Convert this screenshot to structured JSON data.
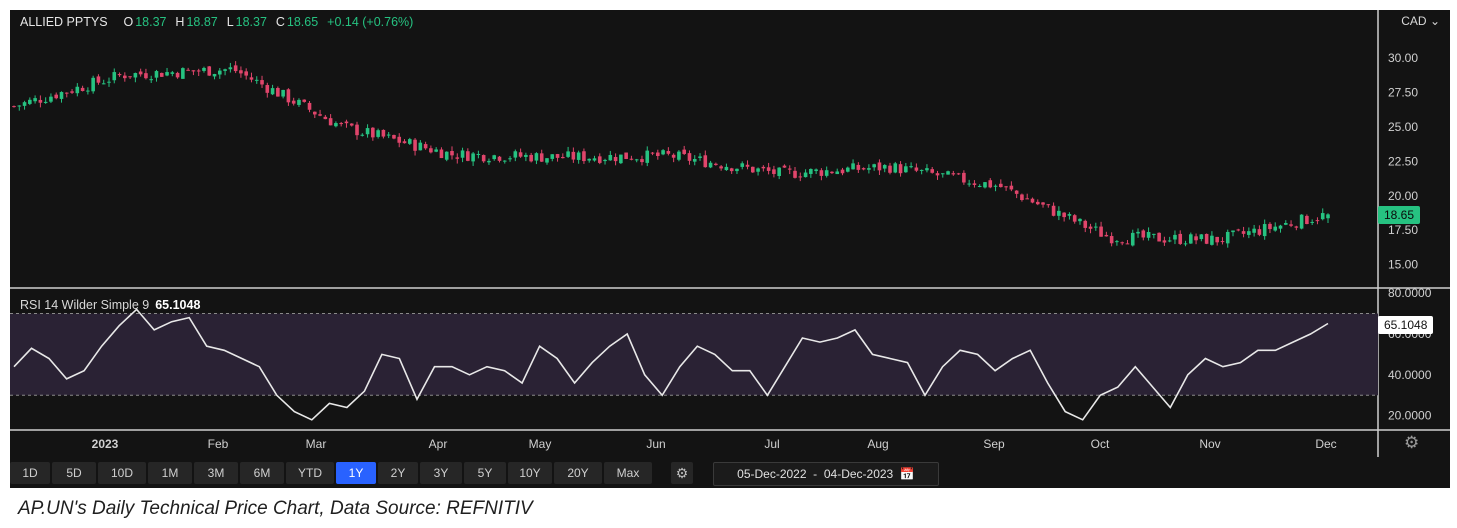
{
  "header": {
    "symbol": "ALLIED PPTYS",
    "open_label": "O",
    "open": "18.37",
    "high_label": "H",
    "high": "18.87",
    "low_label": "L",
    "low": "18.37",
    "close_label": "C",
    "close": "18.65",
    "change": "+0.14 (+0.76%)"
  },
  "currency": "CAD",
  "current_price_tag": "18.65",
  "rsi": {
    "label": "RSI 14 Wilder Simple 9",
    "value": "65.1048",
    "tag": "65.1048"
  },
  "colors": {
    "up": "#26c281",
    "down": "#e0456b",
    "rsi_line": "#e8e8e8",
    "price_tag_bg": "#26c281",
    "accent": "#2962ff"
  },
  "range_buttons": [
    "1D",
    "5D",
    "10D",
    "1M",
    "3M",
    "6M",
    "YTD",
    "1Y",
    "2Y",
    "3Y",
    "5Y",
    "10Y",
    "20Y",
    "Max"
  ],
  "active_range": "1Y",
  "date_range": {
    "start": "05-Dec-2022",
    "end": "04-Dec-2023"
  },
  "icons": {
    "settings": "gear-icon",
    "calendar": "calendar-icon",
    "currency_dropdown": "chevron-down-icon"
  },
  "caption": "AP.UN's Daily Technical Price Chart, Data Source: REFNITIV",
  "chart_data": [
    {
      "type": "candlestick",
      "title": "ALLIED PPTYS",
      "y_ticks": [
        "30.00",
        "27.50",
        "25.00",
        "22.50",
        "20.00",
        "17.50",
        "15.00"
      ],
      "ylim": [
        13.3,
        33.5
      ],
      "x_ticks": [
        "2023",
        "Feb",
        "Mar",
        "Apr",
        "May",
        "Jun",
        "Jul",
        "Aug",
        "Sep",
        "Oct",
        "Nov",
        "Dec"
      ],
      "series": [
        {
          "name": "ALLIED PPTYS",
          "x": [
            "2022-12",
            "2023-01",
            "2023-02",
            "2023-03",
            "2023-04",
            "2023-05",
            "2023-06",
            "2023-07",
            "2023-08",
            "2023-09",
            "2023-10",
            "2023-11",
            "2023-12"
          ],
          "close": [
            26.5,
            28.8,
            29.2,
            25.0,
            23.0,
            22.8,
            22.9,
            21.6,
            22.1,
            20.7,
            17.0,
            16.8,
            18.65
          ]
        }
      ],
      "grid": false
    },
    {
      "type": "line",
      "title": "RSI 14 Wilder Simple 9",
      "y_ticks": [
        "80.0000",
        "60.0000",
        "40.0000",
        "20.0000"
      ],
      "ylim": [
        13,
        82
      ],
      "reference_lines": [
        70,
        30
      ],
      "series": [
        {
          "name": "RSI 14 Wilder Simple 9",
          "values": [
            44,
            53,
            48,
            38,
            42,
            54,
            64,
            72,
            62,
            66,
            68,
            54,
            52,
            48,
            44,
            30,
            22,
            18,
            26,
            24,
            32,
            50,
            48,
            28,
            44,
            44,
            40,
            44,
            42,
            36,
            54,
            48,
            36,
            46,
            54,
            60,
            40,
            30,
            44,
            54,
            50,
            42,
            42,
            30,
            44,
            58,
            56,
            58,
            62,
            50,
            48,
            46,
            30,
            44,
            52,
            50,
            42,
            48,
            52,
            36,
            22,
            18,
            30,
            34,
            44,
            34,
            24,
            40,
            48,
            44,
            46,
            52,
            52,
            56,
            60,
            65.1
          ]
        }
      ]
    }
  ]
}
